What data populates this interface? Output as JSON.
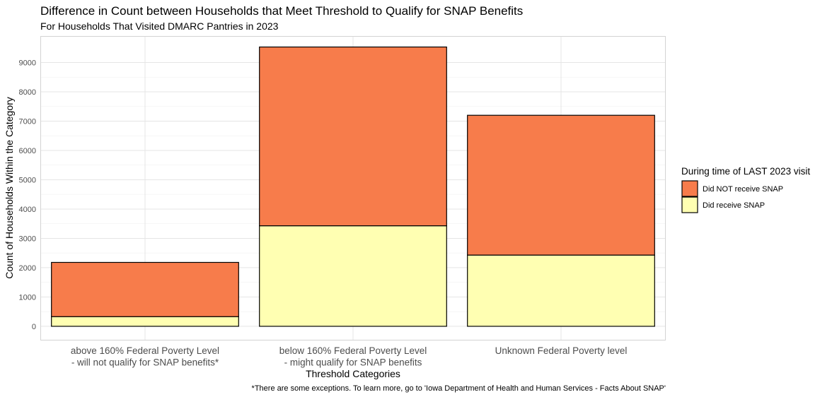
{
  "chart_data": {
    "type": "bar",
    "stacked": true,
    "title": "Difference in Count between Households that Meet Threshold to Qualify for SNAP Benefits",
    "subtitle": "For Households That Visited DMARC Pantries in 2023",
    "xlabel": "Threshold Categories",
    "ylabel": "Count of Households Within the Category",
    "caption": "*There are some exceptions. To learn more, go to 'Iowa Department of Health and Human Services - Facts About SNAP'",
    "categories": [
      [
        "above 160% Federal Poverty Level",
        "- will not qualify for SNAP benefits*"
      ],
      [
        "below 160% Federal Poverty Level",
        "- might qualify for SNAP benefits"
      ],
      [
        "Unknown Federal Poverty level"
      ]
    ],
    "series": [
      {
        "name": "Did receive SNAP",
        "color": "#FFFFB2",
        "values": [
          330,
          3430,
          2430
        ]
      },
      {
        "name": "Did NOT receive SNAP",
        "color": "#F77C4B",
        "values": [
          1850,
          6100,
          4770
        ]
      }
    ],
    "ylim": [
      -460,
      9880
    ],
    "yticks": [
      0,
      1000,
      2000,
      3000,
      4000,
      5000,
      6000,
      7000,
      8000,
      9000
    ],
    "grid": true,
    "legend": {
      "title": "During time of LAST 2023 visit",
      "position": "right",
      "order": [
        "Did NOT receive SNAP",
        "Did receive SNAP"
      ]
    }
  }
}
